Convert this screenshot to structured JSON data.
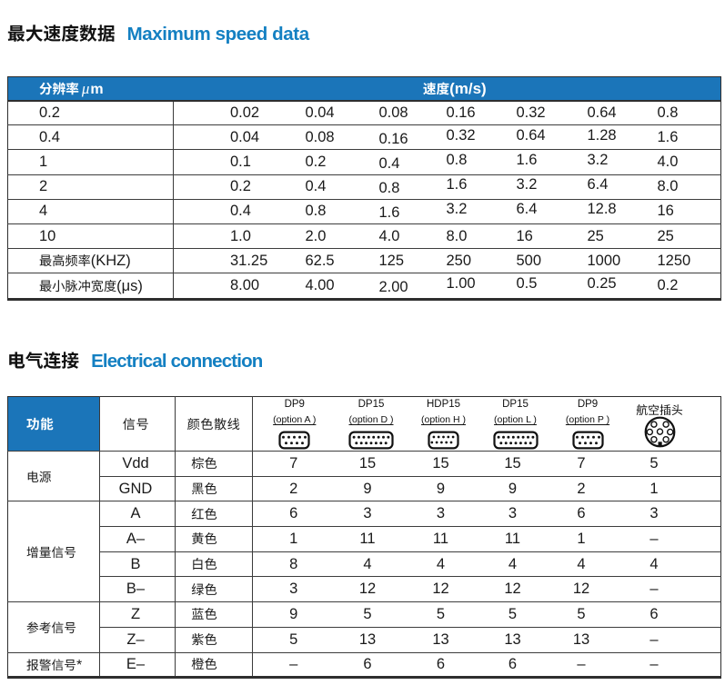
{
  "colors": {
    "header_blue": "#1b75b9",
    "heading_blue": "#1480c2",
    "border_dark": "#2e2e2e",
    "grid_line": "#454545",
    "text": "#1a1a1a"
  },
  "sections": {
    "speed": {
      "title_zh": "最大速度数据",
      "title_en": "Maximum speed data"
    },
    "electrical": {
      "title_zh": "电气连接",
      "title_en": "Electrical connection"
    }
  },
  "speed_table": {
    "header": {
      "resolution": "分辨率",
      "resolution_unit_mu": "μ",
      "resolution_unit_m": "m",
      "speed": "速度(m/s)"
    },
    "rows": [
      {
        "label": "0.2",
        "values": [
          "0.02",
          "0.04",
          "0.08",
          "0.16",
          "0.32",
          "0.64",
          "0.8"
        ]
      },
      {
        "label": "0.4",
        "values": [
          "0.04",
          "0.08",
          "0.16",
          "0.32",
          "0.64",
          "1.28",
          "1.6"
        ]
      },
      {
        "label": "1",
        "values": [
          "0.1",
          "0.2",
          "0.4",
          "0.8",
          "1.6",
          "3.2",
          "4.0"
        ]
      },
      {
        "label": "2",
        "values": [
          "0.2",
          "0.4",
          "0.8",
          "1.6",
          "3.2",
          "6.4",
          "8.0"
        ]
      },
      {
        "label": "4",
        "values": [
          "0.4",
          "0.8",
          "1.6",
          "3.2",
          "6.4",
          "12.8",
          "16"
        ]
      },
      {
        "label": "10",
        "values": [
          "1.0",
          "2.0",
          "4.0",
          "8.0",
          "16",
          "25",
          "25"
        ]
      },
      {
        "label": "最高频率(KHZ)",
        "values": [
          "31.25",
          "62.5",
          "125",
          "250",
          "500",
          "1000",
          "1250"
        ]
      },
      {
        "label": "最小脉冲宽度(μs)",
        "values": [
          "8.00",
          "4.00",
          "2.00",
          "1.00",
          "0.5",
          "0.25",
          "0.2"
        ]
      }
    ]
  },
  "connection_table": {
    "header": {
      "function": "功能",
      "signal": "信号",
      "wire_color": "颜色散线"
    },
    "connectors": [
      {
        "name": "DP9",
        "option": "(option A )",
        "icon": "dsub9-connector-icon"
      },
      {
        "name": "DP15",
        "option": "(option D )",
        "icon": "dsub15-connector-icon"
      },
      {
        "name": "HDP15",
        "option": "(option H )",
        "icon": "hd-dsub15-connector-icon"
      },
      {
        "name": "DP15",
        "option": "(option L )",
        "icon": "dsub15-connector-icon"
      },
      {
        "name": "DP9",
        "option": "(option P )",
        "icon": "dsub9-connector-icon"
      },
      {
        "name": "航空插头",
        "option": "",
        "icon": "aviation-plug-icon"
      }
    ],
    "groups": [
      {
        "function": "电源",
        "rows": [
          {
            "signal": "Vdd",
            "wire_color": "棕色",
            "pins": [
              "7",
              "15",
              "15",
              "15",
              "7",
              "5"
            ]
          },
          {
            "signal": "GND",
            "wire_color": "黑色",
            "pins": [
              "2",
              "9",
              "9",
              "9",
              "2",
              "1"
            ]
          }
        ]
      },
      {
        "function": "增量信号",
        "rows": [
          {
            "signal": "A",
            "wire_color": "红色",
            "pins": [
              "6",
              "3",
              "3",
              "3",
              "6",
              "3"
            ]
          },
          {
            "signal": "A–",
            "wire_color": "黄色",
            "pins": [
              "1",
              "11",
              "11",
              "11",
              "1",
              "–"
            ]
          },
          {
            "signal": "B",
            "wire_color": "白色",
            "pins": [
              "8",
              "4",
              "4",
              "4",
              "4",
              "4"
            ]
          },
          {
            "signal": "B–",
            "wire_color": "绿色",
            "pins": [
              "3",
              "12",
              "12",
              "12",
              "12",
              "–"
            ]
          }
        ]
      },
      {
        "function": "参考信号",
        "rows": [
          {
            "signal": "Z",
            "wire_color": "蓝色",
            "pins": [
              "9",
              "5",
              "5",
              "5",
              "5",
              "6"
            ]
          },
          {
            "signal": "Z–",
            "wire_color": "紫色",
            "pins": [
              "5",
              "13",
              "13",
              "13",
              "13",
              "–"
            ]
          }
        ]
      },
      {
        "function": "报警信号*",
        "rows": [
          {
            "signal": "E–",
            "wire_color": "橙色",
            "pins": [
              "–",
              "6",
              "6",
              "6",
              "–",
              "–"
            ]
          }
        ]
      }
    ]
  }
}
